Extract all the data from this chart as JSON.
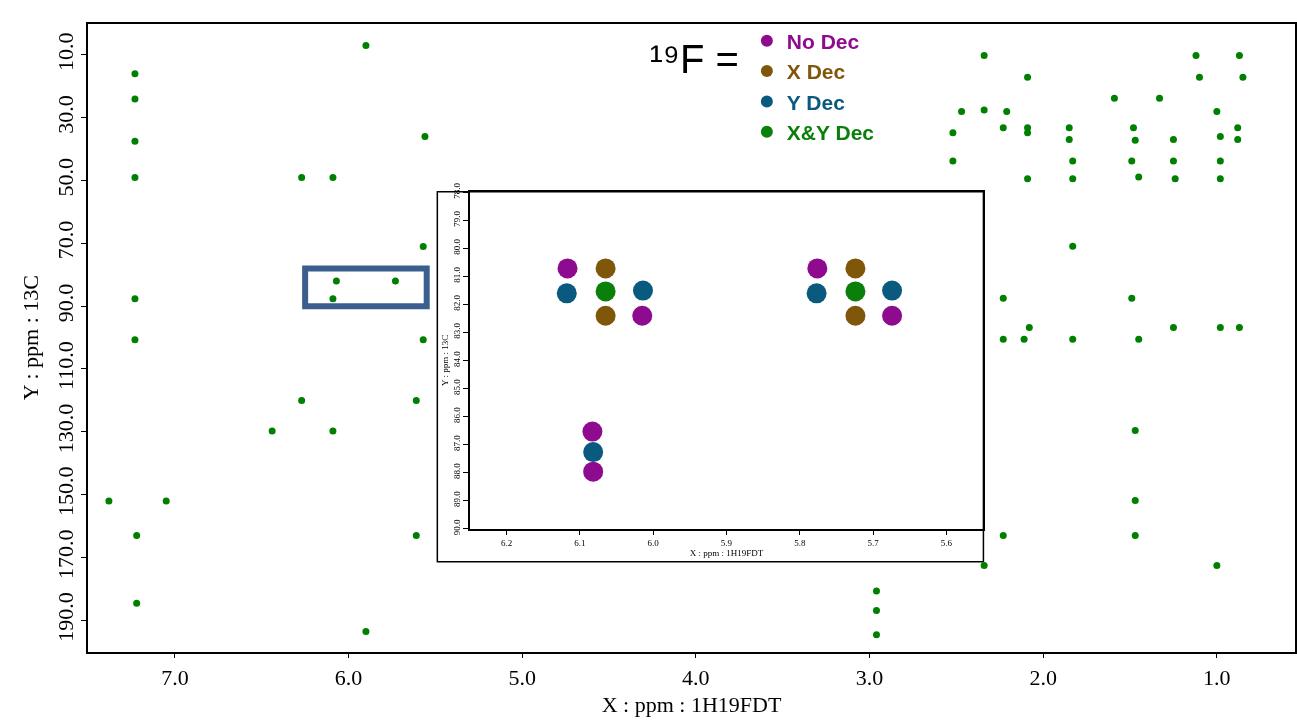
{
  "chart_data": [
    {
      "type": "scatter",
      "xlabel": "X : ppm : 1H19FDT",
      "ylabel": "Y : ppm : 13C",
      "color": "#008000",
      "marker": "circle",
      "x": [
        5.9,
        7.23,
        7.23,
        7.23,
        7.23,
        6.27,
        6.09,
        5.56,
        5.57,
        6.07,
        5.73,
        6.09,
        7.23,
        7.23,
        5.57,
        6.27,
        5.61,
        6.44,
        6.09,
        7.38,
        7.05,
        7.22,
        5.61,
        7.22,
        5.9,
        2.34,
        2.09,
        1.12,
        0.87,
        1.1,
        0.85,
        1.59,
        1.33,
        1.0,
        2.47,
        2.34,
        2.21,
        2.52,
        2.23,
        2.09,
        1.85,
        1.48,
        0.88,
        2.09,
        1.85,
        1.47,
        1.25,
        0.98,
        0.88,
        2.52,
        1.83,
        1.49,
        1.25,
        0.98,
        2.09,
        1.83,
        1.45,
        1.24,
        0.98,
        1.83,
        2.23,
        1.49,
        2.08,
        1.25,
        0.98,
        0.87,
        2.23,
        2.11,
        1.83,
        1.45,
        1.47,
        1.47,
        2.23,
        1.47,
        2.34,
        1.0,
        2.96,
        2.96,
        2.96
      ],
      "values": [
        7,
        16,
        24,
        37.5,
        49,
        49,
        49,
        36,
        71,
        82,
        82,
        87.6,
        87.6,
        100.7,
        100.7,
        120,
        120,
        129.7,
        129.7,
        152,
        152,
        163,
        163,
        184.6,
        193.6,
        10.2,
        17.1,
        10.2,
        10.2,
        17.1,
        17.1,
        23.8,
        23.8,
        28,
        28,
        27.5,
        28,
        34.8,
        33.2,
        33.2,
        33.2,
        33.2,
        33.2,
        34.8,
        36.9,
        37.2,
        36.9,
        36,
        36.9,
        43.8,
        43.8,
        43.8,
        43.8,
        43.8,
        49.4,
        49.4,
        48.9,
        49.4,
        49.4,
        70.9,
        87.5,
        87.5,
        96.8,
        96.8,
        96.8,
        96.8,
        100.5,
        100.5,
        100.5,
        100.5,
        129.6,
        151.9,
        163,
        163,
        172.6,
        172.6,
        180.7,
        186.9,
        194.6
      ],
      "xlim": [
        7.5,
        0.55
      ],
      "ylim": [
        200,
        0
      ],
      "xticks": [
        {
          "value": 7,
          "label": "7.0"
        },
        {
          "value": 6,
          "label": "6.0"
        },
        {
          "value": 5,
          "label": "5.0"
        },
        {
          "value": 4,
          "label": "4.0"
        },
        {
          "value": 3,
          "label": "3.0"
        },
        {
          "value": 2,
          "label": "2.0"
        },
        {
          "value": 1,
          "label": "1.0"
        }
      ],
      "yticks": [
        {
          "value": 10,
          "label": "10.0"
        },
        {
          "value": 30,
          "label": "30.0"
        },
        {
          "value": 50,
          "label": "50.0"
        },
        {
          "value": 70,
          "label": "70.0"
        },
        {
          "value": 90,
          "label": "90.0"
        },
        {
          "value": 110,
          "label": "110.0"
        },
        {
          "value": 130,
          "label": "130.0"
        },
        {
          "value": 150,
          "label": "150.0"
        },
        {
          "value": 170,
          "label": "170.0"
        },
        {
          "value": 190,
          "label": "190.0"
        }
      ]
    },
    {
      "type": "scatter",
      "xlabel": "X : ppm : 1H19FDT",
      "ylabel": "Y : ppm : 13C",
      "marker": "circle",
      "legend": "top",
      "legend_title": "¹⁹F =",
      "xlim": [
        6.25,
        5.55
      ],
      "ylim": [
        90,
        78
      ],
      "xticks": [
        6.2,
        6.1,
        {
          "value": 6,
          "label": "6.0"
        },
        5.9,
        5.8,
        5.7,
        5.6
      ],
      "yticks": [
        {
          "value": 78,
          "label": "78.0"
        },
        {
          "value": 79,
          "label": "79.0"
        },
        {
          "value": 80,
          "label": "80.0"
        },
        {
          "value": 81,
          "label": "81.0"
        },
        {
          "value": 82,
          "label": "82.0"
        },
        {
          "value": 83,
          "label": "83.0"
        },
        {
          "value": 84,
          "label": "84.0"
        },
        {
          "value": 85,
          "label": "85.0"
        },
        {
          "value": 86,
          "label": "86.0"
        },
        {
          "value": 87,
          "label": "87.0"
        },
        {
          "value": 88,
          "label": "88.0"
        },
        {
          "value": 89,
          "label": "89.0"
        },
        {
          "value": 90,
          "label": "90.0"
        }
      ],
      "series": [
        {
          "name": "No Dec",
          "color": "#8e0a8e",
          "x": [
            6.117,
            6.015,
            6.083,
            6.082,
            5.776,
            5.674
          ],
          "values": [
            80.72,
            82.41,
            86.54,
            87.97,
            80.72,
            82.41
          ]
        },
        {
          "name": "X Dec",
          "color": "#80560a",
          "x": [
            6.065,
            6.065,
            5.724,
            5.724
          ],
          "values": [
            80.72,
            82.41,
            80.72,
            82.41
          ]
        },
        {
          "name": "Y Dec",
          "color": "#0a5a80",
          "x": [
            6.118,
            6.014,
            6.082,
            5.777,
            5.674
          ],
          "values": [
            81.61,
            81.51,
            87.27,
            81.61,
            81.51
          ]
        },
        {
          "name": "X&Y Dec",
          "color": "#0a800a",
          "x": [
            6.065,
            5.724
          ],
          "values": [
            81.54,
            81.54
          ]
        }
      ]
    }
  ]
}
